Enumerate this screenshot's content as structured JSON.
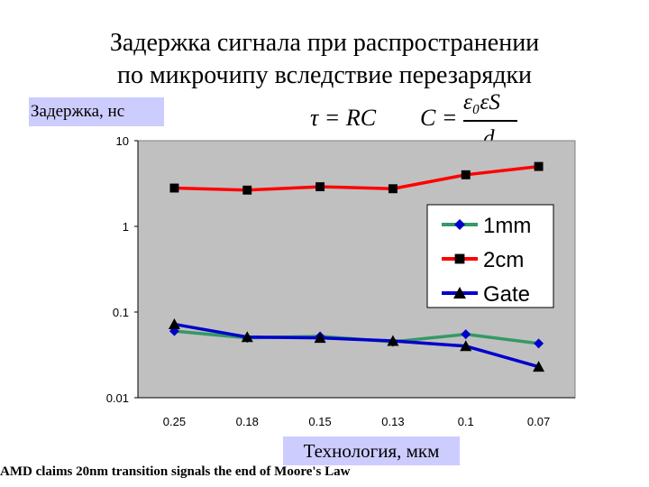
{
  "slide": {
    "title_line1": "Задержка сигнала при распространении",
    "title_line2": "по микрочипу вследствие перезарядки",
    "footnote": "AMD claims 20nm transition signals the end of Moore's Law"
  },
  "formulas": {
    "tau": "τ = RC",
    "c_lhs": "C =",
    "c_num": "ε₀εS",
    "c_den": "d"
  },
  "chart_data": {
    "type": "line",
    "ylabel": "Задержка, нс",
    "xlabel": "Технология, мкм",
    "categories": [
      "0.25",
      "0.18",
      "0.15",
      "0.13",
      "0.1",
      "0.07"
    ],
    "yscale": "log",
    "ylim": [
      0.01,
      10
    ],
    "yticks": [
      10,
      1,
      0.1,
      0.01
    ],
    "ytick_labels": [
      "10",
      "1",
      "0.1",
      "0.01"
    ],
    "grid": false,
    "legend": "right",
    "series": [
      {
        "name": "1mm",
        "color": "#339966",
        "marker": "diamond",
        "values": [
          0.06,
          0.05,
          0.052,
          0.045,
          0.055,
          0.043
        ]
      },
      {
        "name": "2cm",
        "color": "#ff0000",
        "marker": "square",
        "values": [
          2.8,
          2.65,
          2.9,
          2.75,
          4.0,
          5.0
        ]
      },
      {
        "name": "Gate",
        "color": "#0000cc",
        "marker": "triangle",
        "values": [
          0.072,
          0.051,
          0.05,
          0.046,
          0.04,
          0.023
        ]
      }
    ]
  }
}
